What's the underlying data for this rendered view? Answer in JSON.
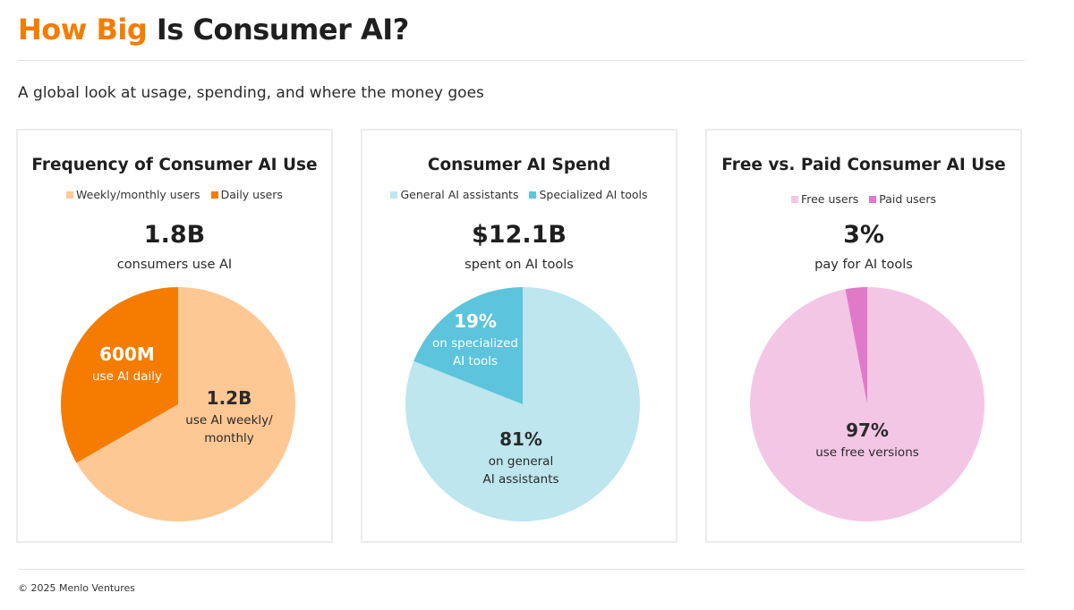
{
  "header": {
    "title_highlight": "How Big",
    "title_rest": "Is Consumer AI?",
    "subtitle": "A global look at usage, spending, and where the money goes"
  },
  "footer": {
    "copyright": "© 2025 Menlo Ventures"
  },
  "colors": {
    "accent": "#f57c00",
    "daily": "#f57c00",
    "weekly": "#fdc894",
    "general": "#bde6ee",
    "specialized": "#5cc4dc",
    "free": "#f3c6e6",
    "paid": "#e07ac8"
  },
  "chart_data": [
    {
      "type": "pie",
      "title": "Frequency of Consumer AI Use",
      "legend": [
        "Weekly/monthly users",
        "Daily users"
      ],
      "headline_value": "1.8B",
      "headline_caption": "consumers use AI",
      "series": [
        {
          "name": "Weekly/monthly users",
          "value": 1.2,
          "color": "#fdc894",
          "label_value": "1.2B",
          "label_lines": [
            "use AI weekly/",
            "monthly"
          ],
          "label_color": "#2a2a2a"
        },
        {
          "name": "Daily users",
          "value": 0.6,
          "color": "#f57c00",
          "label_value": "600M",
          "label_lines": [
            "use AI daily"
          ],
          "label_color": "#ffffff"
        }
      ]
    },
    {
      "type": "pie",
      "title": "Consumer AI Spend",
      "legend": [
        "General AI assistants",
        "Specialized AI tools"
      ],
      "headline_value": "$12.1B",
      "headline_caption": "spent on AI tools",
      "series": [
        {
          "name": "General AI assistants",
          "value": 81,
          "color": "#bde6ee",
          "label_value": "81%",
          "label_lines": [
            "on general",
            "AI assistants"
          ],
          "label_color": "#2a2a2a"
        },
        {
          "name": "Specialized AI tools",
          "value": 19,
          "color": "#5cc4dc",
          "label_value": "19%",
          "label_lines": [
            "on specialized",
            "AI tools"
          ],
          "label_color": "#ffffff"
        }
      ]
    },
    {
      "type": "pie",
      "title": "Free vs. Paid Consumer AI Use",
      "legend": [
        "Free users",
        "Paid users"
      ],
      "headline_value": "3%",
      "headline_caption": "pay for AI tools",
      "series": [
        {
          "name": "Free users",
          "value": 97,
          "color": "#f3c6e6",
          "label_value": "97%",
          "label_lines": [
            "use free versions"
          ],
          "label_color": "#2a2a2a"
        },
        {
          "name": "Paid users",
          "value": 3,
          "color": "#e07ac8",
          "label_value": "",
          "label_lines": [],
          "label_color": "#2a2a2a"
        }
      ]
    }
  ]
}
